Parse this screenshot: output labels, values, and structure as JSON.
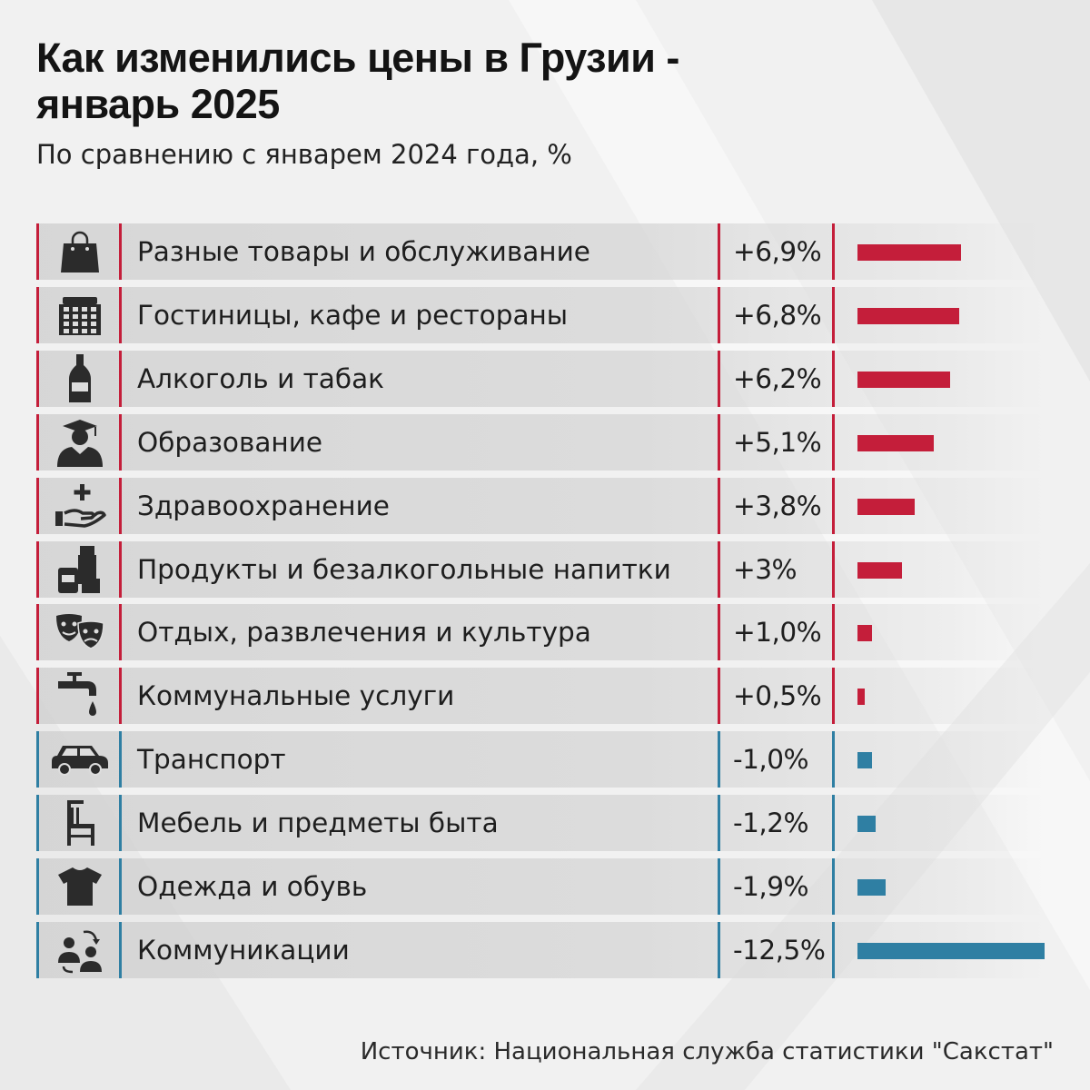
{
  "title_line1": "Как изменились цены в Грузии -",
  "title_line2": "январь 2025",
  "subtitle": "По сравнению с январем 2024 года, %",
  "source": "Источник: Национальная служба статистики \"Сакстат\"",
  "colors": {
    "positive": "#c41e3a",
    "negative": "#2f7fa3",
    "background": "#f1f1f1"
  },
  "chart_data": {
    "type": "bar",
    "orientation": "horizontal",
    "title": "Как изменились цены в Грузии - январь 2025",
    "subtitle": "По сравнению с январем 2024 года, %",
    "unit": "%",
    "rows": [
      {
        "category": "Разные товары и обслуживание",
        "value": 6.9,
        "label": "+6,9%",
        "icon": "shopping-bag-icon"
      },
      {
        "category": "Гостиницы, кафе и рестораны",
        "value": 6.8,
        "label": "+6,8%",
        "icon": "hotel-building-icon"
      },
      {
        "category": "Алкоголь и табак",
        "value": 6.2,
        "label": "+6,2%",
        "icon": "bottle-icon"
      },
      {
        "category": "Образование",
        "value": 5.1,
        "label": "+5,1%",
        "icon": "graduate-icon"
      },
      {
        "category": "Здравоохранение",
        "value": 3.8,
        "label": "+3,8%",
        "icon": "health-care-icon"
      },
      {
        "category": "Продукты и безалкогольные напитки",
        "value": 3.0,
        "label": "+3%",
        "icon": "groceries-icon"
      },
      {
        "category": "Отдых, развлечения и культура",
        "value": 1.0,
        "label": "+1,0%",
        "icon": "theater-masks-icon"
      },
      {
        "category": "Коммунальные услуги",
        "value": 0.5,
        "label": "+0,5%",
        "icon": "water-tap-icon"
      },
      {
        "category": "Транспорт",
        "value": -1.0,
        "label": "-1,0%",
        "icon": "car-icon"
      },
      {
        "category": "Мебель и предметы быта",
        "value": -1.2,
        "label": "-1,2%",
        "icon": "chair-icon"
      },
      {
        "category": "Одежда и обувь",
        "value": -1.9,
        "label": "-1,9%",
        "icon": "t-shirt-icon"
      },
      {
        "category": "Коммуникации",
        "value": -12.5,
        "label": "-12,5%",
        "icon": "people-communication-icon"
      }
    ]
  }
}
